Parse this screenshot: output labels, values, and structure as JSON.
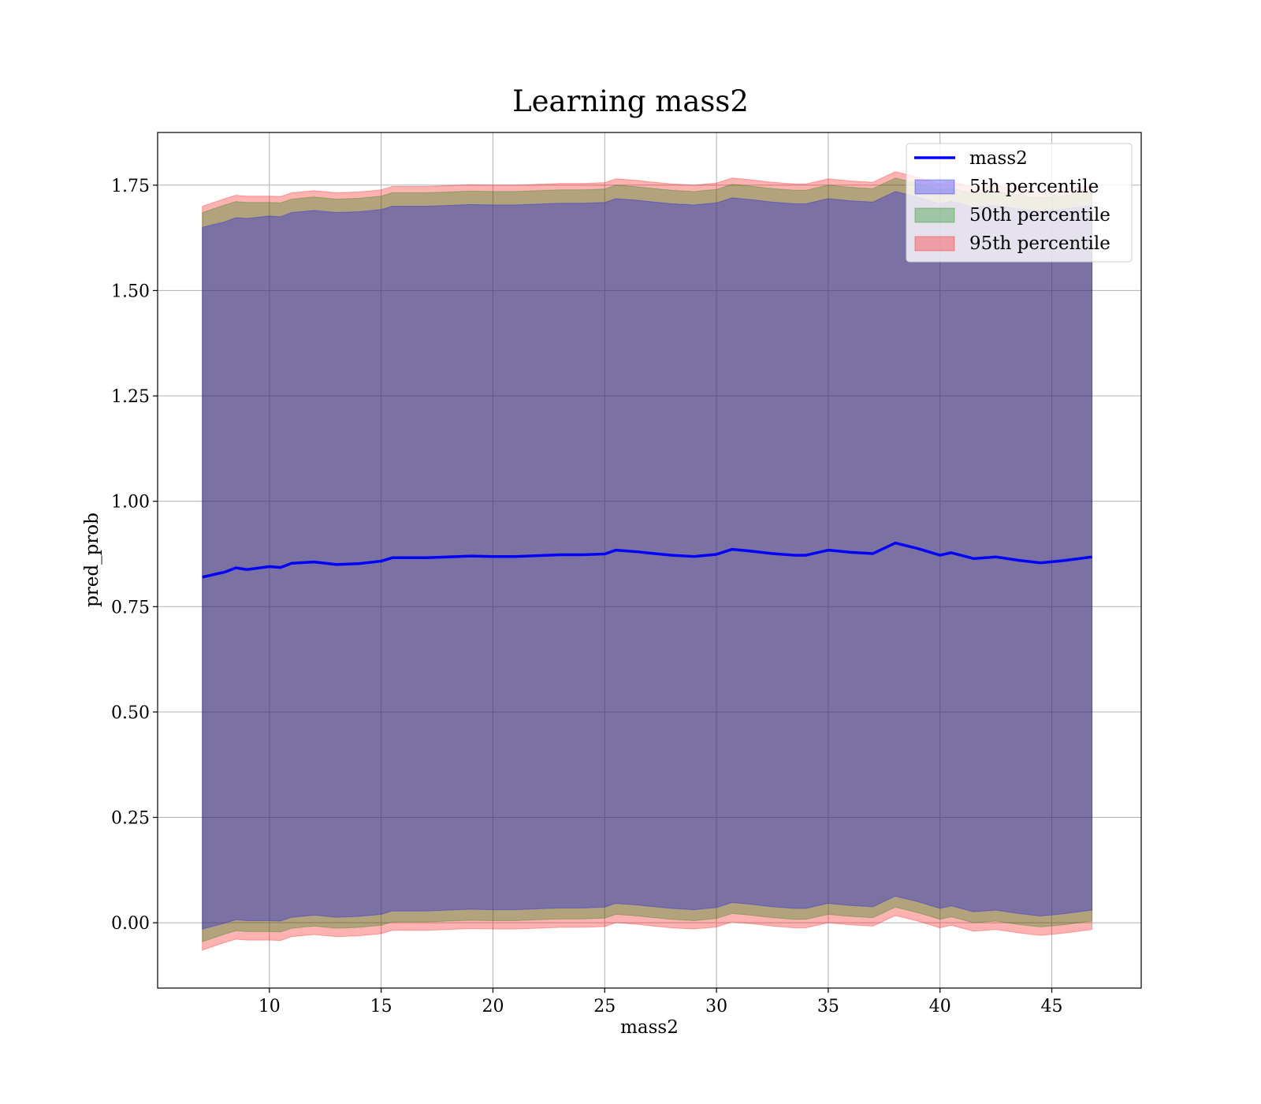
{
  "chart_data": {
    "type": "area",
    "title": "Learning mass2",
    "xlabel": "mass2",
    "ylabel": "pred_prob",
    "xlim": [
      5.0,
      49.0
    ],
    "ylim": [
      -0.155,
      1.875
    ],
    "xticks": [
      10,
      15,
      20,
      25,
      30,
      35,
      40,
      45
    ],
    "xtick_labels": [
      "10",
      "15",
      "20",
      "25",
      "30",
      "35",
      "40",
      "45"
    ],
    "yticks": [
      0.0,
      0.25,
      0.5,
      0.75,
      1.0,
      1.25,
      1.5,
      1.75
    ],
    "ytick_labels": [
      "0.00",
      "0.25",
      "0.50",
      "0.75",
      "1.00",
      "1.25",
      "1.50",
      "1.75"
    ],
    "grid": true,
    "legend_position": "top-right",
    "x": [
      7.0,
      8.0,
      8.5,
      9.0,
      10.0,
      10.5,
      11.0,
      12.0,
      13.0,
      14.0,
      15.0,
      15.5,
      16.5,
      17.0,
      18.0,
      19.0,
      20.0,
      21.0,
      22.0,
      23.0,
      24.0,
      25.0,
      25.5,
      26.5,
      27.0,
      28.0,
      29.0,
      30.0,
      30.7,
      31.5,
      32.5,
      33.5,
      34.0,
      35.0,
      36.0,
      37.0,
      38.0,
      39.0,
      40.0,
      40.5,
      41.5,
      42.5,
      43.5,
      44.5,
      45.5,
      46.8
    ],
    "series": [
      {
        "name": "mass2",
        "style": "line",
        "color": "#0000ff",
        "values": [
          0.82,
          0.832,
          0.842,
          0.838,
          0.845,
          0.843,
          0.853,
          0.856,
          0.85,
          0.852,
          0.858,
          0.866,
          0.866,
          0.866,
          0.868,
          0.87,
          0.869,
          0.869,
          0.871,
          0.873,
          0.873,
          0.875,
          0.884,
          0.88,
          0.877,
          0.872,
          0.869,
          0.874,
          0.886,
          0.882,
          0.876,
          0.872,
          0.872,
          0.884,
          0.879,
          0.876,
          0.901,
          0.888,
          0.872,
          0.878,
          0.864,
          0.868,
          0.86,
          0.854,
          0.859,
          0.868
        ]
      },
      {
        "name": "5th percentile",
        "style": "band",
        "color": "#0000ff",
        "lower": [
          -0.015,
          -0.001,
          0.007,
          0.005,
          0.005,
          0.004,
          0.013,
          0.018,
          0.013,
          0.015,
          0.02,
          0.028,
          0.028,
          0.028,
          0.03,
          0.032,
          0.031,
          0.031,
          0.033,
          0.035,
          0.035,
          0.037,
          0.046,
          0.042,
          0.039,
          0.034,
          0.031,
          0.036,
          0.048,
          0.044,
          0.038,
          0.034,
          0.034,
          0.046,
          0.041,
          0.038,
          0.063,
          0.05,
          0.034,
          0.04,
          0.026,
          0.03,
          0.022,
          0.016,
          0.021,
          0.03
        ],
        "upper": [
          1.65,
          1.663,
          1.673,
          1.671,
          1.677,
          1.675,
          1.685,
          1.69,
          1.685,
          1.687,
          1.692,
          1.7,
          1.7,
          1.7,
          1.702,
          1.704,
          1.703,
          1.703,
          1.705,
          1.707,
          1.707,
          1.709,
          1.718,
          1.714,
          1.711,
          1.706,
          1.703,
          1.708,
          1.72,
          1.716,
          1.71,
          1.706,
          1.706,
          1.718,
          1.713,
          1.71,
          1.735,
          1.722,
          1.706,
          1.712,
          1.698,
          1.702,
          1.694,
          1.688,
          1.693,
          1.702
        ]
      },
      {
        "name": "50th percentile",
        "style": "band",
        "color": "#008000",
        "lower": [
          -0.045,
          -0.027,
          -0.019,
          -0.021,
          -0.021,
          -0.022,
          -0.013,
          -0.008,
          -0.013,
          -0.011,
          -0.006,
          0.002,
          0.002,
          0.002,
          0.004,
          0.006,
          0.005,
          0.005,
          0.007,
          0.009,
          0.009,
          0.011,
          0.02,
          0.016,
          0.013,
          0.008,
          0.005,
          0.01,
          0.022,
          0.018,
          0.012,
          0.008,
          0.008,
          0.02,
          0.015,
          0.012,
          0.037,
          0.024,
          0.008,
          0.014,
          0.0,
          0.004,
          -0.004,
          -0.01,
          -0.005,
          0.004
        ],
        "upper": [
          1.685,
          1.703,
          1.711,
          1.709,
          1.709,
          1.708,
          1.717,
          1.722,
          1.717,
          1.719,
          1.724,
          1.732,
          1.732,
          1.732,
          1.734,
          1.736,
          1.735,
          1.735,
          1.737,
          1.739,
          1.739,
          1.741,
          1.75,
          1.746,
          1.743,
          1.738,
          1.735,
          1.74,
          1.752,
          1.748,
          1.742,
          1.738,
          1.738,
          1.75,
          1.745,
          1.742,
          1.767,
          1.754,
          1.738,
          1.744,
          1.73,
          1.734,
          1.726,
          1.72,
          1.725,
          1.734
        ]
      },
      {
        "name": "95th percentile",
        "style": "band",
        "color": "#ff0000",
        "lower": [
          -0.065,
          -0.047,
          -0.039,
          -0.041,
          -0.041,
          -0.042,
          -0.033,
          -0.028,
          -0.033,
          -0.031,
          -0.026,
          -0.018,
          -0.018,
          -0.018,
          -0.016,
          -0.014,
          -0.015,
          -0.015,
          -0.013,
          -0.011,
          -0.011,
          -0.009,
          0.0,
          -0.004,
          -0.007,
          -0.012,
          -0.015,
          -0.01,
          0.002,
          -0.002,
          -0.008,
          -0.012,
          -0.012,
          0.0,
          -0.005,
          -0.008,
          0.017,
          0.004,
          -0.012,
          -0.006,
          -0.02,
          -0.016,
          -0.024,
          -0.03,
          -0.025,
          -0.016
        ],
        "upper": [
          1.7,
          1.718,
          1.726,
          1.724,
          1.724,
          1.723,
          1.732,
          1.737,
          1.732,
          1.734,
          1.739,
          1.747,
          1.747,
          1.747,
          1.749,
          1.751,
          1.75,
          1.75,
          1.752,
          1.754,
          1.754,
          1.756,
          1.765,
          1.761,
          1.758,
          1.753,
          1.75,
          1.755,
          1.767,
          1.763,
          1.757,
          1.753,
          1.753,
          1.765,
          1.76,
          1.757,
          1.782,
          1.769,
          1.753,
          1.759,
          1.745,
          1.749,
          1.741,
          1.735,
          1.74,
          1.749
        ]
      }
    ],
    "legend": [
      "mass2",
      "5th percentile",
      "50th percentile",
      "95th percentile"
    ]
  }
}
